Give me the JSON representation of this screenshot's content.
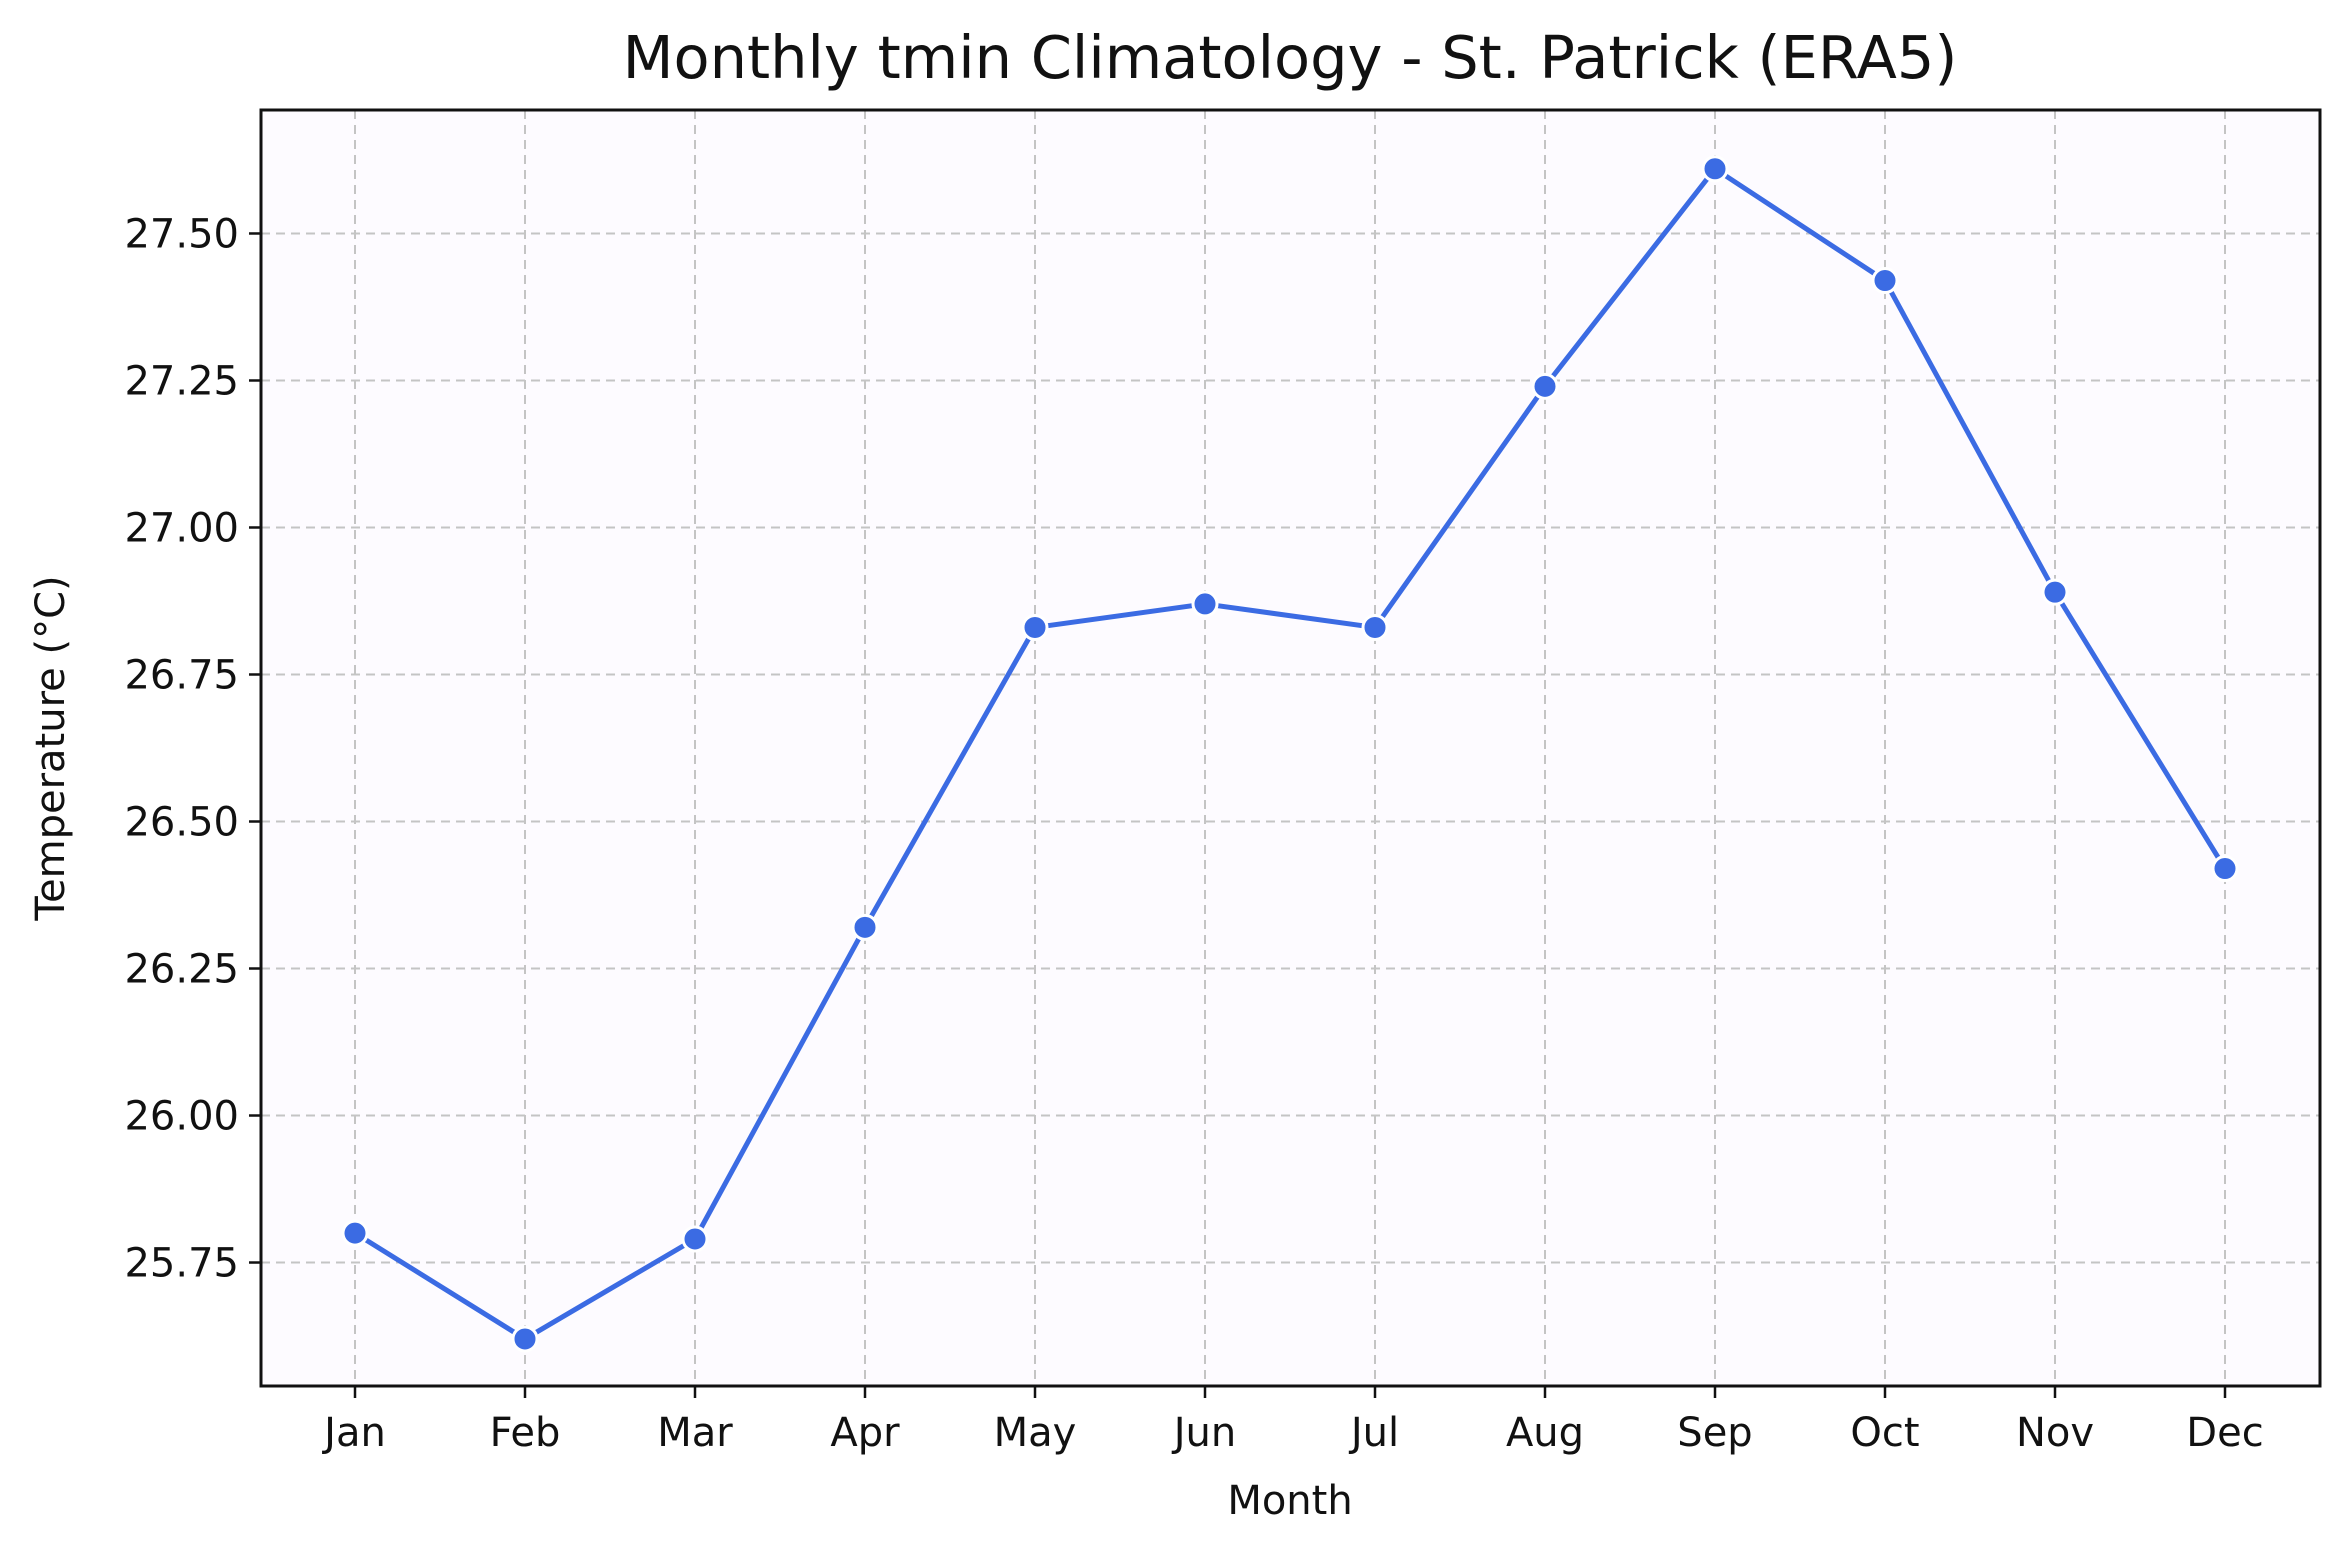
{
  "chart_data": {
    "type": "line",
    "title": "Monthly tmin Climatology - St. Patrick (ERA5)",
    "xlabel": "Month",
    "ylabel": "Temperature (°C)",
    "categories": [
      "Jan",
      "Feb",
      "Mar",
      "Apr",
      "May",
      "Jun",
      "Jul",
      "Aug",
      "Sep",
      "Oct",
      "Nov",
      "Dec"
    ],
    "series": [
      {
        "values": [
          25.8,
          25.62,
          25.79,
          26.32,
          26.83,
          26.87,
          26.83,
          27.24,
          27.61,
          27.42,
          26.89,
          26.42
        ]
      }
    ],
    "yticks": [
      "25.75",
      "26.00",
      "26.25",
      "26.50",
      "26.75",
      "27.00",
      "27.25",
      "27.50"
    ],
    "ylim": [
      25.54,
      27.71
    ],
    "grid": true,
    "colors": {
      "line": "#3b6be3",
      "marker_edge": "#ffffff",
      "plot_background": "#fdfbff",
      "grid": "#c4c4c4",
      "axes": "#111111"
    }
  }
}
